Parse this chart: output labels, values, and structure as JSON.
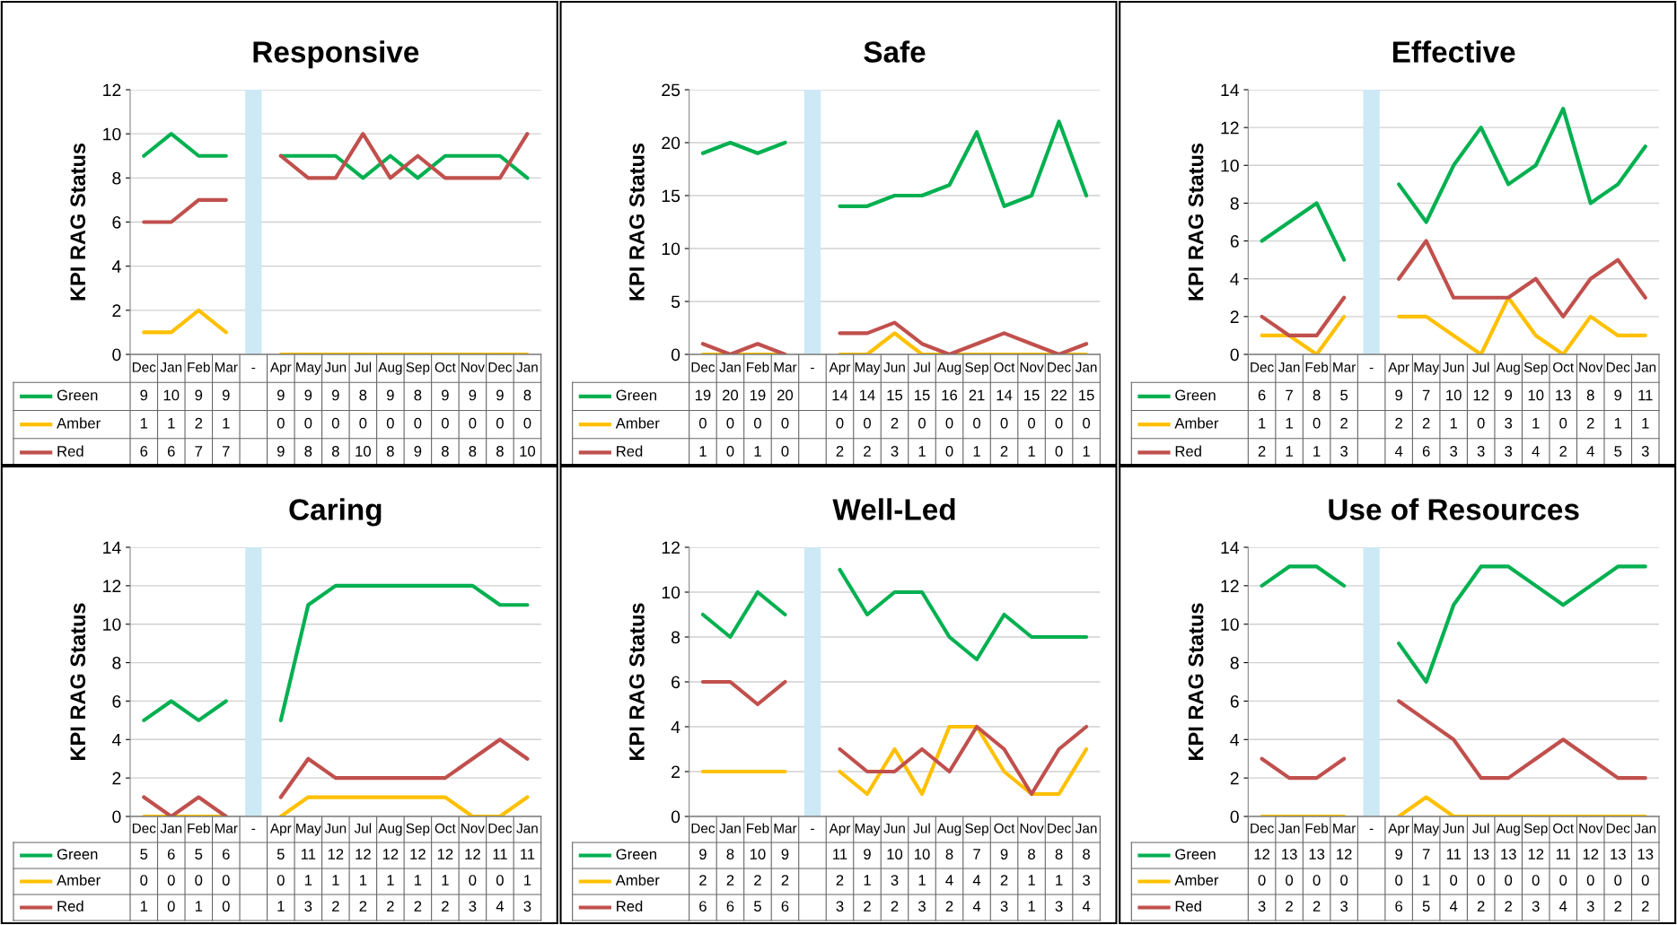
{
  "chart_data": [
    {
      "type": "line",
      "title": "Responsive",
      "legend": "bottom left",
      "ylabel": "KPI RAG Status",
      "categories": [
        "Dec",
        "Jan",
        "Feb",
        "Mar",
        "-",
        "Apr",
        "May",
        "Jun",
        "Jul",
        "Aug",
        "Sep",
        "Oct",
        "Nov",
        "Dec",
        "Jan"
      ],
      "ylim": [
        0,
        12
      ],
      "yticks": [
        0,
        2,
        4,
        6,
        8,
        10,
        12
      ],
      "grid": "y",
      "data_labels": true,
      "bands": [
        {
          "axis": "x",
          "from": "-",
          "to": "-",
          "color": "#cde9f5"
        }
      ],
      "series": [
        {
          "name": "Green",
          "color": "#00b050",
          "values": [
            9,
            10,
            9,
            9,
            null,
            9,
            9,
            9,
            8,
            9,
            8,
            9,
            9,
            9,
            8
          ]
        },
        {
          "name": "Amber",
          "color": "#ffc000",
          "values": [
            1,
            1,
            2,
            1,
            null,
            0,
            0,
            0,
            0,
            0,
            0,
            0,
            0,
            0,
            0
          ]
        },
        {
          "name": "Red",
          "color": "#c0504d",
          "values": [
            6,
            6,
            7,
            7,
            null,
            9,
            8,
            8,
            10,
            8,
            9,
            8,
            8,
            8,
            10
          ]
        }
      ]
    },
    {
      "type": "line",
      "title": "Safe",
      "legend": "bottom left",
      "ylabel": "KPI RAG Status",
      "categories": [
        "Dec",
        "Jan",
        "Feb",
        "Mar",
        "-",
        "Apr",
        "May",
        "Jun",
        "Jul",
        "Aug",
        "Sep",
        "Oct",
        "Nov",
        "Dec",
        "Jan"
      ],
      "ylim": [
        0,
        25
      ],
      "yticks": [
        0,
        5,
        10,
        15,
        20,
        25
      ],
      "grid": "y",
      "data_labels": true,
      "bands": [
        {
          "axis": "x",
          "from": "-",
          "to": "-",
          "color": "#cde9f5"
        }
      ],
      "series": [
        {
          "name": "Green",
          "color": "#00b050",
          "values": [
            19,
            20,
            19,
            20,
            null,
            14,
            14,
            15,
            15,
            16,
            21,
            14,
            15,
            22,
            15
          ]
        },
        {
          "name": "Amber",
          "color": "#ffc000",
          "values": [
            0,
            0,
            0,
            0,
            null,
            0,
            0,
            2,
            0,
            0,
            0,
            0,
            0,
            0,
            0
          ]
        },
        {
          "name": "Red",
          "color": "#c0504d",
          "values": [
            1,
            0,
            1,
            0,
            null,
            2,
            2,
            3,
            1,
            0,
            1,
            2,
            1,
            0,
            1
          ]
        }
      ]
    },
    {
      "type": "line",
      "title": "Effective",
      "legend": "bottom left",
      "ylabel": "KPI RAG Status",
      "categories": [
        "Dec",
        "Jan",
        "Feb",
        "Mar",
        "-",
        "Apr",
        "May",
        "Jun",
        "Jul",
        "Aug",
        "Sep",
        "Oct",
        "Nov",
        "Dec",
        "Jan"
      ],
      "ylim": [
        0,
        14
      ],
      "yticks": [
        0,
        2,
        4,
        6,
        8,
        10,
        12,
        14
      ],
      "grid": "y",
      "data_labels": true,
      "bands": [
        {
          "axis": "x",
          "from": "-",
          "to": "-",
          "color": "#cde9f5"
        }
      ],
      "series": [
        {
          "name": "Green",
          "color": "#00b050",
          "values": [
            6,
            7,
            8,
            5,
            null,
            9,
            7,
            10,
            12,
            9,
            10,
            13,
            8,
            9,
            11
          ]
        },
        {
          "name": "Amber",
          "color": "#ffc000",
          "values": [
            1,
            1,
            0,
            2,
            null,
            2,
            2,
            1,
            0,
            3,
            1,
            0,
            2,
            1,
            1
          ]
        },
        {
          "name": "Red",
          "color": "#c0504d",
          "values": [
            2,
            1,
            1,
            3,
            null,
            4,
            6,
            3,
            3,
            3,
            4,
            2,
            4,
            5,
            3
          ]
        }
      ]
    },
    {
      "type": "line",
      "title": "Caring",
      "legend": "bottom left",
      "ylabel": "KPI RAG Status",
      "categories": [
        "Dec",
        "Jan",
        "Feb",
        "Mar",
        "-",
        "Apr",
        "May",
        "Jun",
        "Jul",
        "Aug",
        "Sep",
        "Oct",
        "Nov",
        "Dec",
        "Jan"
      ],
      "ylim": [
        0,
        14
      ],
      "yticks": [
        0,
        2,
        4,
        6,
        8,
        10,
        12,
        14
      ],
      "grid": "y",
      "data_labels": true,
      "bands": [
        {
          "axis": "x",
          "from": "-",
          "to": "-",
          "color": "#cde9f5"
        }
      ],
      "series": [
        {
          "name": "Green",
          "color": "#00b050",
          "values": [
            5,
            6,
            5,
            6,
            null,
            5,
            11,
            12,
            12,
            12,
            12,
            12,
            12,
            11,
            11
          ]
        },
        {
          "name": "Amber",
          "color": "#ffc000",
          "values": [
            0,
            0,
            0,
            0,
            null,
            0,
            1,
            1,
            1,
            1,
            1,
            1,
            0,
            0,
            1
          ]
        },
        {
          "name": "Red",
          "color": "#c0504d",
          "values": [
            1,
            0,
            1,
            0,
            null,
            1,
            3,
            2,
            2,
            2,
            2,
            2,
            3,
            4,
            3
          ]
        }
      ]
    },
    {
      "type": "line",
      "title": "Well-Led",
      "legend": "bottom left",
      "ylabel": "KPI RAG Status",
      "categories": [
        "Dec",
        "Jan",
        "Feb",
        "Mar",
        "-",
        "Apr",
        "May",
        "Jun",
        "Jul",
        "Aug",
        "Sep",
        "Oct",
        "Nov",
        "Dec",
        "Jan"
      ],
      "ylim": [
        0,
        12
      ],
      "yticks": [
        0,
        2,
        4,
        6,
        8,
        10,
        12
      ],
      "grid": "y",
      "data_labels": true,
      "bands": [
        {
          "axis": "x",
          "from": "-",
          "to": "-",
          "color": "#cde9f5"
        }
      ],
      "series": [
        {
          "name": "Green",
          "color": "#00b050",
          "values": [
            9,
            8,
            10,
            9,
            null,
            11,
            9,
            10,
            10,
            8,
            7,
            9,
            8,
            8,
            8
          ]
        },
        {
          "name": "Amber",
          "color": "#ffc000",
          "values": [
            2,
            2,
            2,
            2,
            null,
            2,
            1,
            3,
            1,
            4,
            4,
            2,
            1,
            1,
            3
          ]
        },
        {
          "name": "Red",
          "color": "#c0504d",
          "values": [
            6,
            6,
            5,
            6,
            null,
            3,
            2,
            2,
            3,
            2,
            4,
            3,
            1,
            3,
            4
          ]
        }
      ]
    },
    {
      "type": "line",
      "title": "Use of Resources",
      "legend": "bottom left",
      "ylabel": "KPI RAG Status",
      "categories": [
        "Dec",
        "Jan",
        "Feb",
        "Mar",
        "-",
        "Apr",
        "May",
        "Jun",
        "Jul",
        "Aug",
        "Sep",
        "Oct",
        "Nov",
        "Dec",
        "Jan"
      ],
      "ylim": [
        0,
        14
      ],
      "yticks": [
        0,
        2,
        4,
        6,
        8,
        10,
        12,
        14
      ],
      "grid": "y",
      "data_labels": true,
      "bands": [
        {
          "axis": "x",
          "from": "-",
          "to": "-",
          "color": "#cde9f5"
        }
      ],
      "series": [
        {
          "name": "Green",
          "color": "#00b050",
          "values": [
            12,
            13,
            13,
            12,
            null,
            9,
            7,
            11,
            13,
            13,
            12,
            11,
            12,
            13,
            13
          ]
        },
        {
          "name": "Amber",
          "color": "#ffc000",
          "values": [
            0,
            0,
            0,
            0,
            null,
            0,
            1,
            0,
            0,
            0,
            0,
            0,
            0,
            0,
            0
          ]
        },
        {
          "name": "Red",
          "color": "#c0504d",
          "values": [
            3,
            2,
            2,
            3,
            null,
            6,
            5,
            4,
            2,
            2,
            3,
            4,
            3,
            2,
            2
          ]
        }
      ]
    }
  ]
}
